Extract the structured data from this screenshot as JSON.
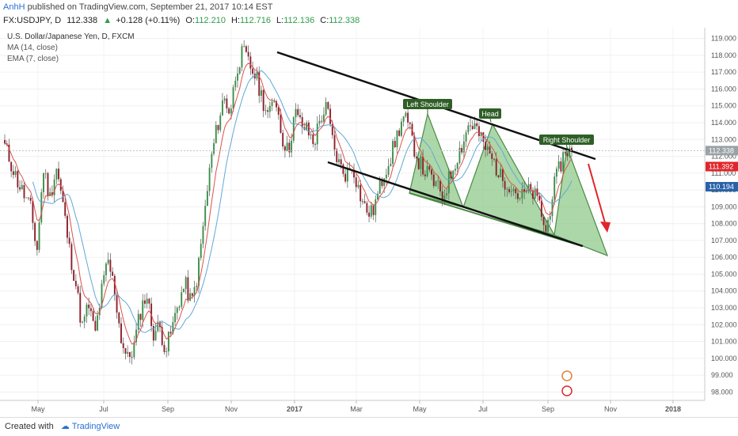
{
  "header": {
    "author": "AnhH",
    "published_text": "published on TradingView.com, September 21, 2017 10:14 EST"
  },
  "ohlc_line": {
    "symbol": "FX:USDJPY, D",
    "last": "112.338",
    "change": "+0.128 (+0.11%)",
    "o_label": "O:",
    "o": "112.210",
    "h_label": "H:",
    "h": "112.716",
    "l_label": "L:",
    "l": "112.136",
    "c_label": "C:",
    "c": "112.338"
  },
  "legend": {
    "title": "U.S. Dollar/Japanese Yen, D, FXCM",
    "ma": "MA (14, close)",
    "ema": "EMA (7, close)"
  },
  "footer": {
    "created_with": "Created with",
    "brand": "TradingView"
  },
  "chart_data": {
    "type": "candlestick",
    "symbol": "USDJPY",
    "title": "U.S. Dollar/Japanese Yen, D, FXCM",
    "ylim": [
      97.5,
      119.5
    ],
    "y_ticks": [
      "98.000",
      "99.000",
      "100.000",
      "101.000",
      "102.000",
      "103.000",
      "104.000",
      "105.000",
      "106.000",
      "107.000",
      "108.000",
      "109.000",
      "110.000",
      "111.000",
      "112.000",
      "113.000",
      "114.000",
      "115.000",
      "116.000",
      "117.000",
      "118.000",
      "119.000"
    ],
    "x_ticks": [
      "May",
      "Jul",
      "Sep",
      "Nov",
      "2017",
      "Mar",
      "May",
      "Jul",
      "Sep",
      "Nov",
      "2018"
    ],
    "price_labels": [
      {
        "text": "112.338",
        "value": 112.338,
        "color": "#9aa2a8"
      },
      {
        "text": "111.392",
        "value": 111.392,
        "color": "#e0262a"
      },
      {
        "text": "110.194",
        "value": 110.194,
        "color": "#2962a8"
      }
    ],
    "annotations": [
      "Left Shoulder",
      "Head",
      "Right Shoulder"
    ],
    "series": [
      {
        "name": "MA (14, close)",
        "color": "#5fa8d8"
      },
      {
        "name": "EMA (7, close)",
        "color": "#d9534f"
      }
    ],
    "price_path": [
      [
        0,
        112.6
      ],
      [
        2,
        110.5
      ],
      [
        4,
        108.9
      ],
      [
        5,
        106.4
      ],
      [
        6,
        111.3
      ],
      [
        7,
        109.5
      ],
      [
        8,
        111.4
      ],
      [
        9,
        109.2
      ],
      [
        10,
        106.5
      ],
      [
        11,
        104.5
      ],
      [
        12,
        101.8
      ],
      [
        13,
        103.2
      ],
      [
        14,
        101.4
      ],
      [
        15,
        103.9
      ],
      [
        16,
        105.8
      ],
      [
        17,
        104.2
      ],
      [
        18,
        101.3
      ],
      [
        19,
        99.9
      ],
      [
        20,
        100.6
      ],
      [
        21,
        102.7
      ],
      [
        22,
        103.9
      ],
      [
        23,
        101.5
      ],
      [
        24,
        101.9
      ],
      [
        25,
        100.5
      ],
      [
        26,
        101.8
      ],
      [
        27,
        103.4
      ],
      [
        28,
        104.4
      ],
      [
        29,
        103.2
      ],
      [
        30,
        105.2
      ],
      [
        31,
        108.5
      ],
      [
        32,
        111.8
      ],
      [
        33,
        113.8
      ],
      [
        34,
        115.5
      ],
      [
        35,
        114.6
      ],
      [
        36,
        117.3
      ],
      [
        37,
        118.2
      ],
      [
        38,
        117.4
      ],
      [
        39,
        116.7
      ],
      [
        40,
        115.4
      ],
      [
        41,
        114.3
      ],
      [
        42,
        115.7
      ],
      [
        43,
        113.2
      ],
      [
        44,
        112.2
      ],
      [
        45,
        114.6
      ],
      [
        46,
        113.9
      ],
      [
        47,
        113.5
      ],
      [
        48,
        112.8
      ],
      [
        49,
        114.3
      ],
      [
        50,
        114.9
      ],
      [
        51,
        112.6
      ],
      [
        52,
        111.4
      ],
      [
        53,
        110.9
      ],
      [
        54,
        111.5
      ],
      [
        55,
        109.9
      ],
      [
        56,
        108.8
      ],
      [
        57,
        108.6
      ],
      [
        58,
        109.8
      ],
      [
        59,
        111.2
      ],
      [
        60,
        112.1
      ],
      [
        61,
        113.4
      ],
      [
        62,
        114.4
      ],
      [
        63,
        113.3
      ],
      [
        64,
        111.9
      ],
      [
        65,
        111.2
      ],
      [
        66,
        110.8
      ],
      [
        67,
        110.2
      ],
      [
        68,
        109.6
      ],
      [
        69,
        110.7
      ],
      [
        70,
        111.8
      ],
      [
        71,
        112.7
      ],
      [
        72,
        113.9
      ],
      [
        73,
        113.8
      ],
      [
        74,
        112.9
      ],
      [
        75,
        112.2
      ],
      [
        76,
        111.6
      ],
      [
        77,
        110.7
      ],
      [
        78,
        110.5
      ],
      [
        79,
        110.1
      ],
      [
        80,
        109.5
      ],
      [
        81,
        109.9
      ],
      [
        82,
        109.8
      ],
      [
        83,
        109.1
      ],
      [
        84,
        107.4
      ],
      [
        85,
        109.8
      ],
      [
        86,
        111.2
      ],
      [
        87,
        112.4
      ],
      [
        88,
        112.3
      ]
    ]
  }
}
